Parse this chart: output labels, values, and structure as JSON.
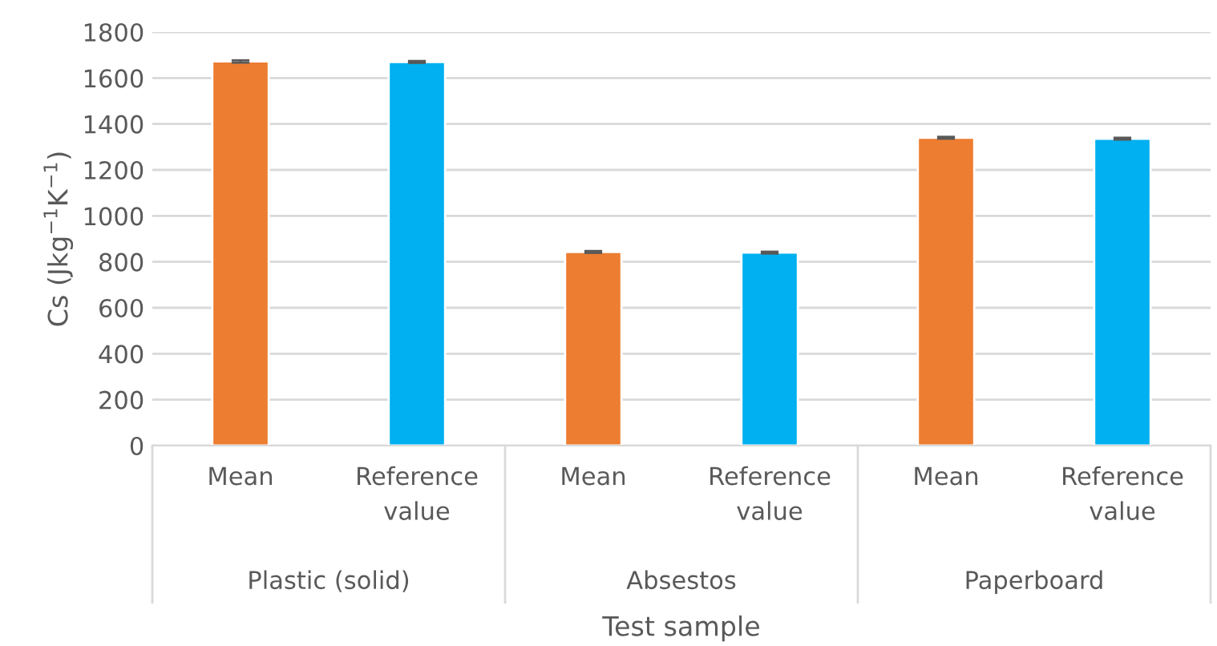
{
  "chart_data": {
    "type": "bar",
    "categories": [
      "Mean",
      "Reference\nvalue",
      "Mean",
      "Reference\nvalue",
      "Mean",
      "Reference\nvalue"
    ],
    "values": [
      1672,
      1670,
      843,
      840,
      1340,
      1336
    ],
    "errors": [
      5,
      4,
      4,
      4,
      4,
      4
    ],
    "colors": [
      "#ed7d31",
      "#00b0f0",
      "#ed7d31",
      "#00b0f0",
      "#ed7d31",
      "#00b0f0"
    ],
    "xlabel": "Test sample",
    "ylabel": "Cs (Jkg$^{−1}$K$^{−1}$)",
    "annotations": [
      "Plastic (solid)",
      "Absestos",
      "Paperboard"
    ],
    "ylim": [
      0,
      1800
    ],
    "yticks": [
      0,
      200,
      400,
      600,
      800,
      1000,
      1200,
      1400,
      1600,
      1800
    ],
    "grid": "y",
    "legend": false
  }
}
